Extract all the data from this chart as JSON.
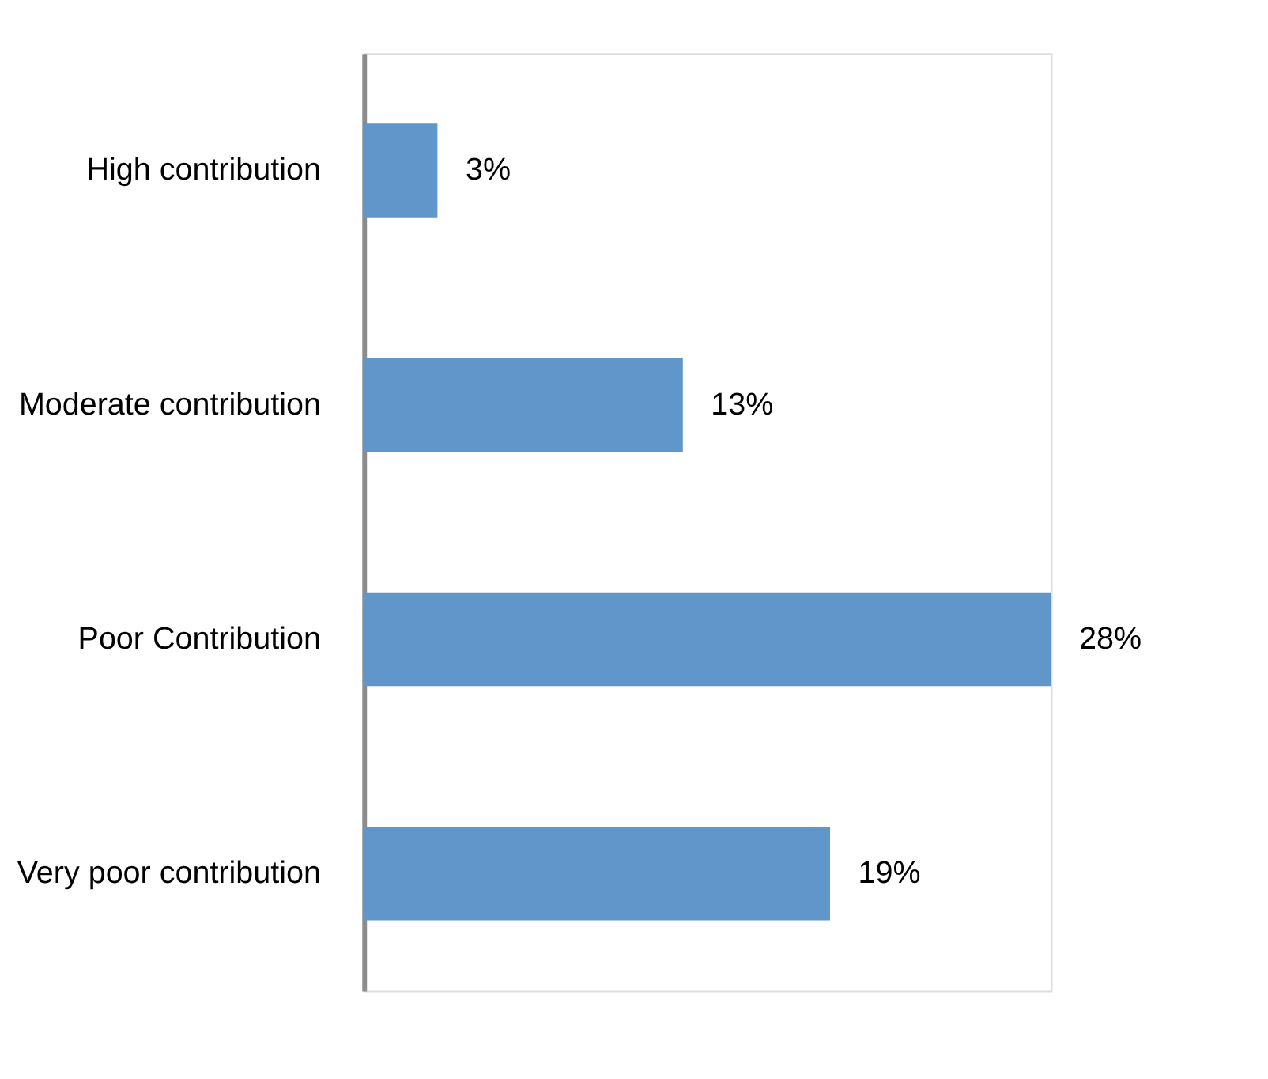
{
  "chart_data": {
    "type": "bar",
    "orientation": "horizontal",
    "categories": [
      "High contribution",
      "Moderate contribution",
      "Poor Contribution",
      "Very poor contribution"
    ],
    "values": [
      3,
      13,
      28,
      19
    ],
    "value_labels": [
      "3%",
      "13%",
      "28%",
      "19%"
    ],
    "color": "#6196cb"
  }
}
